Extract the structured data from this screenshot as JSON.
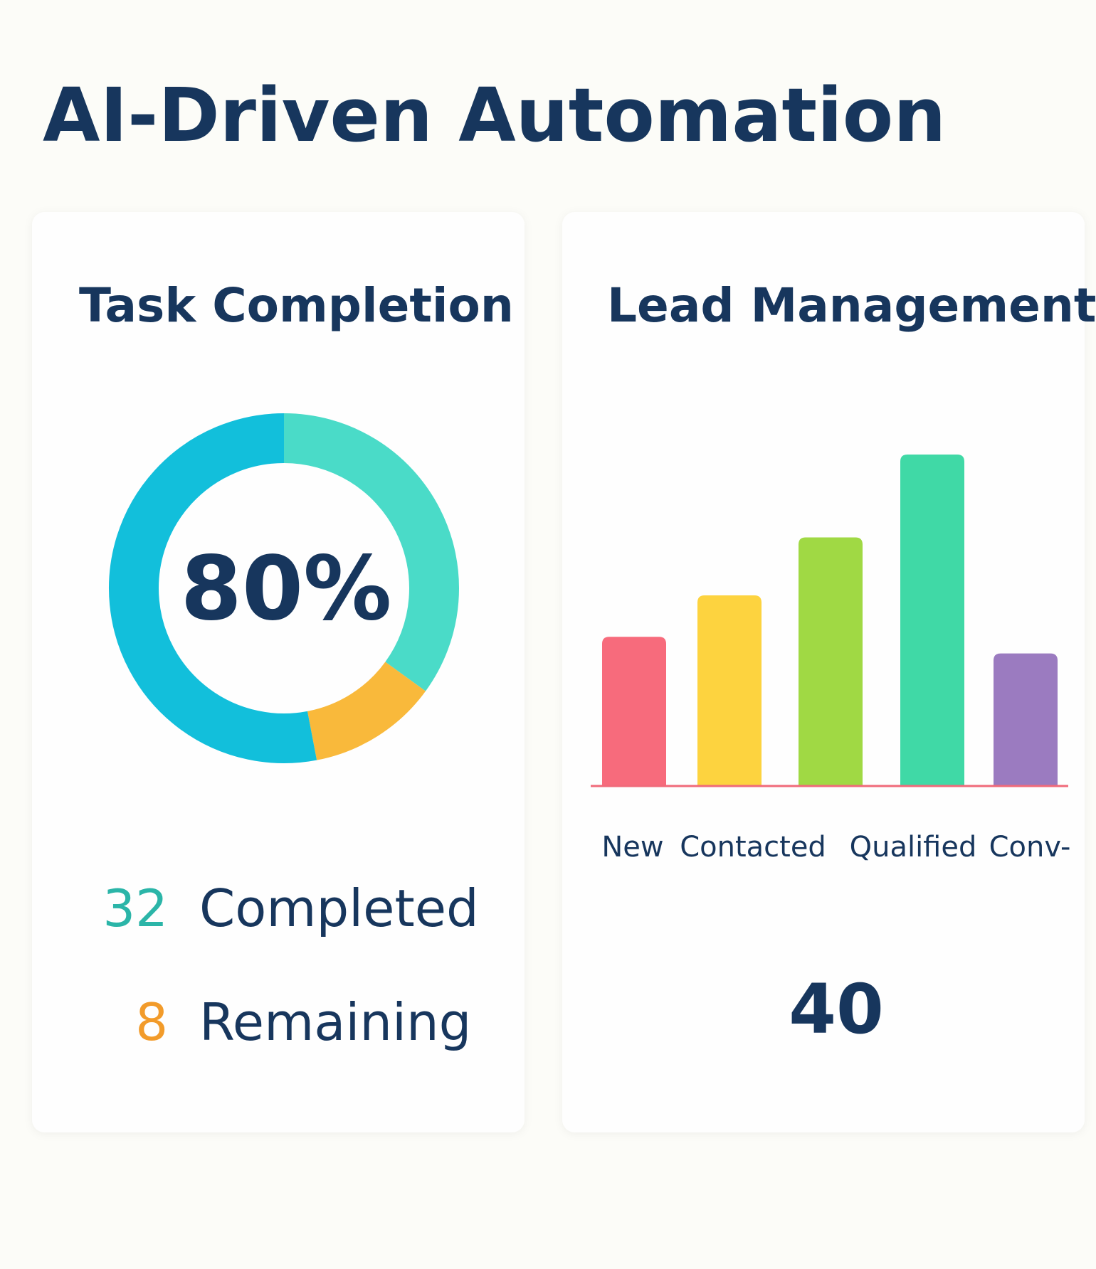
{
  "title": "AI-Driven Automation",
  "chart_data": [
    {
      "type": "donut",
      "title": "Task Completion",
      "center_label": "80%",
      "values": [
        35,
        12,
        53
      ],
      "colors": [
        "#4adbc8",
        "#f9b93b",
        "#12bfdb"
      ],
      "stats": [
        {
          "value": 32,
          "label": "Completed",
          "color": "#2bb5a8"
        },
        {
          "value": 8,
          "label": "Remaining",
          "color": "#f29b2a"
        }
      ]
    },
    {
      "type": "bar",
      "title": "Lead Management",
      "categories": [
        "New",
        "Contacted",
        null,
        "Qualified",
        "Conv-"
      ],
      "values": [
        18,
        23,
        30,
        40,
        16
      ],
      "colors": [
        "#f76b7c",
        "#fdd33f",
        "#a0d944",
        "#40d9a6",
        "#9b7bc0"
      ],
      "ylim": [
        0,
        40
      ],
      "baseline_color": "#f06a7a",
      "footer": 40
    }
  ]
}
